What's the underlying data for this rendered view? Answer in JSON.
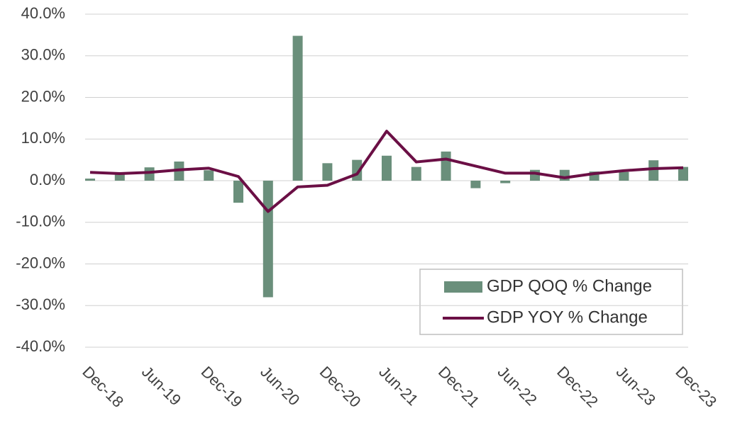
{
  "chart_data": {
    "type": "bar+line",
    "categories": [
      "Dec-18",
      null,
      "Jun-19",
      null,
      "Dec-19",
      null,
      "Jun-20",
      null,
      "Dec-20",
      null,
      "Jun-21",
      null,
      "Dec-21",
      null,
      "Jun-22",
      null,
      "Dec-22",
      null,
      "Jun-23",
      null,
      "Dec-23"
    ],
    "series": [
      {
        "name": "GDP QOQ % Change",
        "type": "bar",
        "color": "#6a8f7b",
        "values": [
          0.5,
          1.5,
          3.2,
          4.6,
          2.5,
          -5.3,
          -28.0,
          34.8,
          4.2,
          5.0,
          6.0,
          3.3,
          7.0,
          -1.8,
          -0.6,
          2.6,
          2.6,
          2.2,
          2.1,
          4.9,
          3.3
        ]
      },
      {
        "name": "GDP YOY % Change",
        "type": "line",
        "color": "#6b0f45",
        "values": [
          2.0,
          1.7,
          2.0,
          2.6,
          3.0,
          1.0,
          -7.4,
          -1.5,
          -1.1,
          1.6,
          11.9,
          4.5,
          5.2,
          3.5,
          1.8,
          1.8,
          0.7,
          1.7,
          2.4,
          2.9,
          3.1
        ]
      }
    ],
    "ylim": [
      -40,
      40
    ],
    "yticks": [
      {
        "value": -40,
        "label": "-40.0%"
      },
      {
        "value": -30,
        "label": "-30.0%"
      },
      {
        "value": -20,
        "label": "-20.0%"
      },
      {
        "value": -10,
        "label": "-10.0%"
      },
      {
        "value": 0,
        "label": "0.0%"
      },
      {
        "value": 10,
        "label": "10.0%"
      },
      {
        "value": 20,
        "label": "20.0%"
      },
      {
        "value": 30,
        "label": "30.0%"
      },
      {
        "value": 40,
        "label": "40.0%"
      }
    ],
    "grid": true,
    "legend": "lower right"
  }
}
